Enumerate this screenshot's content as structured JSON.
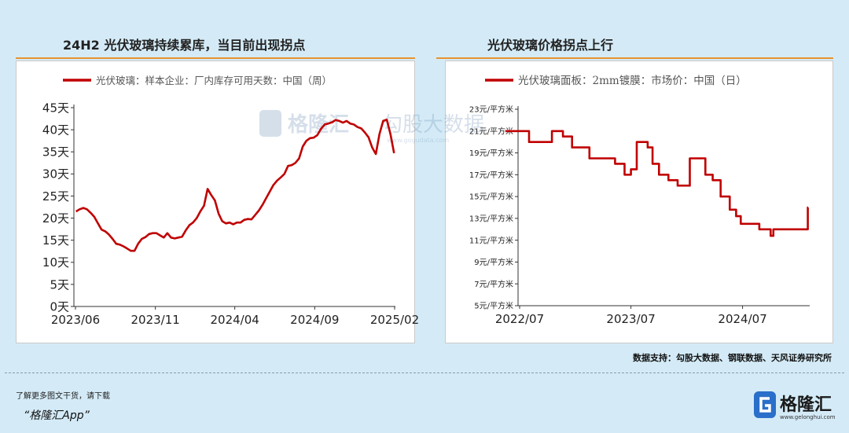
{
  "left_panel": {
    "title": "24H2 光伏玻璃持续累库，当目前出现拐点"
  },
  "right_panel": {
    "title": "光伏玻璃价格拐点上行"
  },
  "watermark": {
    "brand": "格隆汇",
    "sub_brand": "勾股大数据",
    "url": "www.gogudata.com"
  },
  "source": "数据支持：勾股大数据、钢联数据、天风证券研究所",
  "footer": {
    "cta": "了解更多图文干货，请下载",
    "app": "“格隆汇App”"
  },
  "logo": {
    "text": "格隆汇",
    "url": "www.gelonghui.com"
  },
  "colors": {
    "series": "#c00000",
    "accent": "#e8932e",
    "background": "#d4ebf7"
  },
  "chart_data": [
    {
      "type": "line",
      "legend_placement": "top-left",
      "grid": false,
      "ylim": [
        0,
        45
      ],
      "y_ticks": [
        "0天",
        "5天",
        "10天",
        "15天",
        "20天",
        "25天",
        "30天",
        "35天",
        "40天",
        "45天"
      ],
      "x_ticks": [
        "2023/06",
        "2023/11",
        "2024/04",
        "2024/09",
        "2025/02"
      ],
      "series": [
        {
          "name": "光伏玻璃：样本企业：厂内库存可用天数：中国（周）",
          "points": [
            [
              "2023-06-02",
              21.5
            ],
            [
              "2023-06-09",
              22.0
            ],
            [
              "2023-06-16",
              22.3
            ],
            [
              "2023-06-23",
              22.0
            ],
            [
              "2023-06-30",
              21.2
            ],
            [
              "2023-07-07",
              20.3
            ],
            [
              "2023-07-14",
              18.8
            ],
            [
              "2023-07-21",
              17.4
            ],
            [
              "2023-07-28",
              17.0
            ],
            [
              "2023-08-04",
              16.3
            ],
            [
              "2023-08-11",
              15.3
            ],
            [
              "2023-08-18",
              14.2
            ],
            [
              "2023-08-25",
              14.0
            ],
            [
              "2023-09-01",
              13.6
            ],
            [
              "2023-09-08",
              13.1
            ],
            [
              "2023-09-15",
              12.6
            ],
            [
              "2023-09-22",
              12.6
            ],
            [
              "2023-09-29",
              14.2
            ],
            [
              "2023-10-06",
              15.3
            ],
            [
              "2023-10-13",
              15.7
            ],
            [
              "2023-10-20",
              16.4
            ],
            [
              "2023-10-27",
              16.6
            ],
            [
              "2023-11-03",
              16.6
            ],
            [
              "2023-11-10",
              16.1
            ],
            [
              "2023-11-17",
              15.6
            ],
            [
              "2023-11-24",
              16.6
            ],
            [
              "2023-12-01",
              15.6
            ],
            [
              "2023-12-08",
              15.4
            ],
            [
              "2023-12-15",
              15.6
            ],
            [
              "2023-12-22",
              15.8
            ],
            [
              "2023-12-29",
              17.2
            ],
            [
              "2024-01-05",
              18.4
            ],
            [
              "2024-01-12",
              19.0
            ],
            [
              "2024-01-19",
              20.0
            ],
            [
              "2024-01-26",
              21.5
            ],
            [
              "2024-02-02",
              22.8
            ],
            [
              "2024-02-09",
              26.6
            ],
            [
              "2024-02-16",
              25.2
            ],
            [
              "2024-02-23",
              24.0
            ],
            [
              "2024-03-01",
              21.0
            ],
            [
              "2024-03-08",
              19.3
            ],
            [
              "2024-03-15",
              18.8
            ],
            [
              "2024-03-22",
              19.0
            ],
            [
              "2024-03-29",
              18.6
            ],
            [
              "2024-04-05",
              19.0
            ],
            [
              "2024-04-12",
              19.0
            ],
            [
              "2024-04-19",
              19.6
            ],
            [
              "2024-04-26",
              19.8
            ],
            [
              "2024-05-03",
              19.7
            ],
            [
              "2024-05-10",
              20.7
            ],
            [
              "2024-05-17",
              21.7
            ],
            [
              "2024-05-24",
              23.0
            ],
            [
              "2024-05-31",
              24.5
            ],
            [
              "2024-06-07",
              26.0
            ],
            [
              "2024-06-14",
              27.5
            ],
            [
              "2024-06-21",
              28.5
            ],
            [
              "2024-06-28",
              29.2
            ],
            [
              "2024-07-05",
              30.0
            ],
            [
              "2024-07-12",
              31.8
            ],
            [
              "2024-07-19",
              32.0
            ],
            [
              "2024-07-26",
              32.5
            ],
            [
              "2024-08-02",
              33.5
            ],
            [
              "2024-08-09",
              36.2
            ],
            [
              "2024-08-16",
              37.5
            ],
            [
              "2024-08-23",
              38.1
            ],
            [
              "2024-08-30",
              38.2
            ],
            [
              "2024-09-06",
              38.8
            ],
            [
              "2024-09-13",
              40.2
            ],
            [
              "2024-09-20",
              41.2
            ],
            [
              "2024-09-27",
              41.4
            ],
            [
              "2024-10-04",
              41.7
            ],
            [
              "2024-10-11",
              42.2
            ],
            [
              "2024-10-18",
              42.0
            ],
            [
              "2024-10-25",
              41.6
            ],
            [
              "2024-11-01",
              42.0
            ],
            [
              "2024-11-08",
              41.4
            ],
            [
              "2024-11-15",
              41.2
            ],
            [
              "2024-11-22",
              40.6
            ],
            [
              "2024-11-29",
              40.3
            ],
            [
              "2024-12-06",
              39.4
            ],
            [
              "2024-12-13",
              38.3
            ],
            [
              "2024-12-20",
              36.0
            ],
            [
              "2024-12-27",
              34.5
            ],
            [
              "2025-01-03",
              39.0
            ],
            [
              "2025-01-10",
              42.0
            ],
            [
              "2025-01-17",
              42.3
            ],
            [
              "2025-01-24",
              39.0
            ],
            [
              "2025-01-31",
              34.7
            ]
          ]
        }
      ]
    },
    {
      "type": "line",
      "legend_placement": "top-left",
      "grid": false,
      "ylim": [
        5,
        23
      ],
      "y_ticks": [
        "5元/平方米",
        "7元/平方米",
        "9元/平方米",
        "11元/平方米",
        "13元/平方米",
        "15元/平方米",
        "17元/平方米",
        "19元/平方米",
        "21元/平方米",
        "23元/平方米"
      ],
      "x_ticks": [
        "2022/07",
        "2023/07",
        "2024/07"
      ],
      "series": [
        {
          "name": "光伏玻璃面板：2mm镀膜：市场价：中国（日）",
          "step": true,
          "points": [
            [
              "2022-05-15",
              21.0
            ],
            [
              "2022-08-01",
              20.0
            ],
            [
              "2022-10-15",
              21.0
            ],
            [
              "2022-11-20",
              20.5
            ],
            [
              "2022-12-20",
              19.5
            ],
            [
              "2023-02-15",
              18.5
            ],
            [
              "2023-05-10",
              18.0
            ],
            [
              "2023-06-10",
              17.0
            ],
            [
              "2023-07-01",
              17.5
            ],
            [
              "2023-07-20",
              20.0
            ],
            [
              "2023-08-25",
              19.5
            ],
            [
              "2023-09-10",
              18.0
            ],
            [
              "2023-10-01",
              17.0
            ],
            [
              "2023-11-01",
              16.5
            ],
            [
              "2023-12-01",
              16.0
            ],
            [
              "2024-01-10",
              18.5
            ],
            [
              "2024-03-01",
              17.0
            ],
            [
              "2024-03-25",
              16.5
            ],
            [
              "2024-04-20",
              15.0
            ],
            [
              "2024-05-20",
              13.8
            ],
            [
              "2024-06-10",
              13.2
            ],
            [
              "2024-06-25",
              12.5
            ],
            [
              "2024-08-25",
              12.0
            ],
            [
              "2024-10-01",
              11.4
            ],
            [
              "2024-10-10",
              12.0
            ],
            [
              "2025-01-25",
              12.0
            ],
            [
              "2025-01-31",
              14.0
            ]
          ]
        }
      ]
    }
  ]
}
